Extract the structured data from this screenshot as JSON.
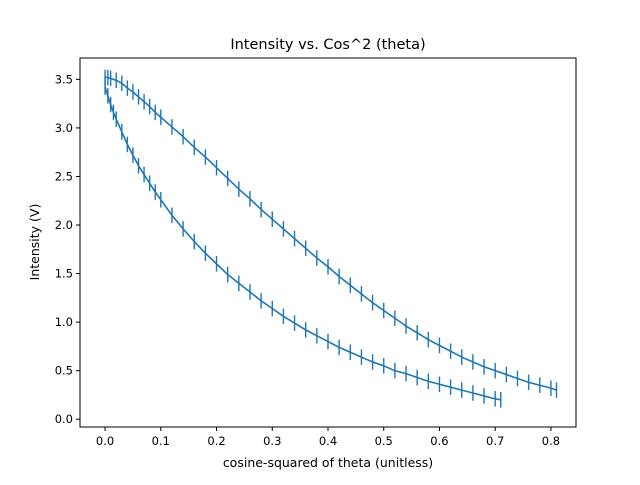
{
  "chart_data": {
    "type": "line",
    "title": "Intensity vs. Cos^2 (theta)",
    "xlabel": "cosine-squared of theta (unitless)",
    "ylabel": "Intensity (V)",
    "xlim": [
      -0.045,
      0.845
    ],
    "ylim": [
      -0.08,
      3.72
    ],
    "xticks": [
      {
        "value": 0.0,
        "label": "0.0"
      },
      {
        "value": 0.1,
        "label": "0.1"
      },
      {
        "value": 0.2,
        "label": "0.2"
      },
      {
        "value": 0.3,
        "label": "0.3"
      },
      {
        "value": 0.4,
        "label": "0.4"
      },
      {
        "value": 0.5,
        "label": "0.5"
      },
      {
        "value": 0.6,
        "label": "0.6"
      },
      {
        "value": 0.7,
        "label": "0.7"
      },
      {
        "value": 0.8,
        "label": "0.8"
      }
    ],
    "yticks": [
      {
        "value": 0.0,
        "label": "0.0"
      },
      {
        "value": 0.5,
        "label": "0.5"
      },
      {
        "value": 1.0,
        "label": "1.0"
      },
      {
        "value": 1.5,
        "label": "1.5"
      },
      {
        "value": 2.0,
        "label": "2.0"
      },
      {
        "value": 2.5,
        "label": "2.5"
      },
      {
        "value": 3.0,
        "label": "3.0"
      },
      {
        "value": 3.5,
        "label": "3.5"
      }
    ],
    "grid": false,
    "color": "#1f77b4",
    "error_bar": 0.08,
    "series": [
      {
        "x": [
          0.0,
          0.005,
          0.01,
          0.02,
          0.03,
          0.04,
          0.05,
          0.06,
          0.07,
          0.08,
          0.09,
          0.1,
          0.12,
          0.14,
          0.16,
          0.18,
          0.2,
          0.22,
          0.24,
          0.26,
          0.28,
          0.3,
          0.32,
          0.34,
          0.36,
          0.38,
          0.4,
          0.42,
          0.44,
          0.46,
          0.48,
          0.5,
          0.52,
          0.54,
          0.56,
          0.58,
          0.6,
          0.62,
          0.64,
          0.66,
          0.68,
          0.7,
          0.72,
          0.74,
          0.76,
          0.78,
          0.8,
          0.81
        ],
        "y": [
          3.52,
          3.52,
          3.51,
          3.49,
          3.46,
          3.41,
          3.37,
          3.32,
          3.27,
          3.22,
          3.16,
          3.11,
          3.01,
          2.91,
          2.8,
          2.7,
          2.59,
          2.48,
          2.37,
          2.27,
          2.16,
          2.06,
          1.96,
          1.86,
          1.76,
          1.66,
          1.57,
          1.47,
          1.38,
          1.29,
          1.2,
          1.12,
          1.04,
          0.96,
          0.89,
          0.82,
          0.76,
          0.7,
          0.64,
          0.59,
          0.54,
          0.5,
          0.46,
          0.42,
          0.38,
          0.35,
          0.32,
          0.3
        ]
      },
      {
        "x": [
          0.0,
          0.005,
          0.01,
          0.015,
          0.02,
          0.03,
          0.04,
          0.05,
          0.06,
          0.07,
          0.08,
          0.09,
          0.1,
          0.12,
          0.14,
          0.16,
          0.18,
          0.2,
          0.22,
          0.24,
          0.26,
          0.28,
          0.3,
          0.32,
          0.34,
          0.36,
          0.38,
          0.4,
          0.42,
          0.44,
          0.46,
          0.48,
          0.5,
          0.52,
          0.54,
          0.56,
          0.58,
          0.6,
          0.62,
          0.64,
          0.66,
          0.68,
          0.7,
          0.71
        ],
        "y": [
          3.42,
          3.33,
          3.24,
          3.16,
          3.09,
          2.96,
          2.83,
          2.72,
          2.61,
          2.52,
          2.43,
          2.34,
          2.26,
          2.1,
          1.96,
          1.83,
          1.71,
          1.6,
          1.49,
          1.4,
          1.31,
          1.22,
          1.14,
          1.06,
          0.99,
          0.92,
          0.86,
          0.8,
          0.74,
          0.69,
          0.64,
          0.59,
          0.55,
          0.5,
          0.47,
          0.43,
          0.39,
          0.36,
          0.33,
          0.3,
          0.27,
          0.24,
          0.21,
          0.2
        ]
      }
    ]
  }
}
